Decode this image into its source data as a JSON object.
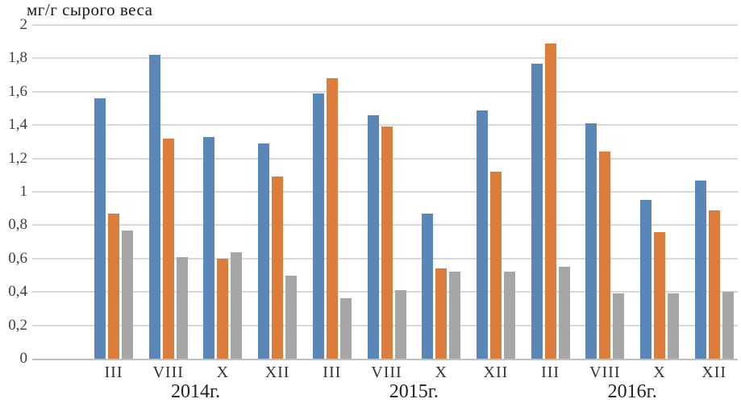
{
  "chart_data": {
    "type": "bar",
    "title": "мг/г сырого веса",
    "ylabel": "мг/г сырого веса",
    "xlabel": "",
    "ylim": [
      0,
      2
    ],
    "ytick_step": 0.2,
    "grid": true,
    "legend_position": "none",
    "yticks": [
      {
        "v": 2.0,
        "label": "2"
      },
      {
        "v": 1.8,
        "label": "1,8"
      },
      {
        "v": 1.6,
        "label": "1,6"
      },
      {
        "v": 1.4,
        "label": "1,4"
      },
      {
        "v": 1.2,
        "label": "1,2"
      },
      {
        "v": 1.0,
        "label": "1"
      },
      {
        "v": 0.8,
        "label": "0,8"
      },
      {
        "v": 0.6,
        "label": "0,6"
      },
      {
        "v": 0.4,
        "label": "0,4"
      },
      {
        "v": 0.2,
        "label": "0,2"
      },
      {
        "v": 0.0,
        "label": "0"
      }
    ],
    "categories": [
      "III",
      "VIII",
      "X",
      "XII",
      "III",
      "VIII",
      "X",
      "XII",
      "III",
      "VIII",
      "X",
      "XII"
    ],
    "year_groups": [
      {
        "label": "2014г.",
        "from": 0,
        "to": 3
      },
      {
        "label": "2015г.",
        "from": 4,
        "to": 7
      },
      {
        "label": "2016г.",
        "from": 8,
        "to": 11
      }
    ],
    "series": [
      {
        "name": "series-blue",
        "color": "#5a86b8",
        "values": [
          1.56,
          1.82,
          1.33,
          1.29,
          1.59,
          1.46,
          0.87,
          1.49,
          1.77,
          1.41,
          0.95,
          1.07
        ]
      },
      {
        "name": "series-orange",
        "color": "#dd7d3c",
        "values": [
          0.87,
          1.32,
          0.6,
          1.09,
          1.68,
          1.39,
          0.54,
          1.12,
          1.89,
          1.24,
          0.76,
          0.89
        ]
      },
      {
        "name": "series-gray",
        "color": "#a6a6a6",
        "values": [
          0.77,
          0.61,
          0.64,
          0.5,
          0.36,
          0.41,
          0.52,
          0.52,
          0.55,
          0.39,
          0.39,
          0.4
        ]
      }
    ],
    "colors": {
      "gridline": "#d9d9d9",
      "axis_line": "#bfbfbf"
    }
  }
}
